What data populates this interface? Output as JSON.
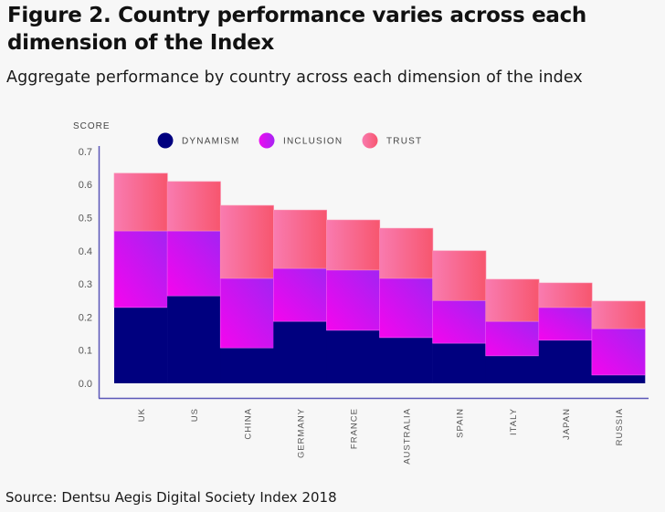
{
  "header": {
    "title": "Figure 2. Country performance varies across each dimension of the Index",
    "subtitle": "Aggregate performance by country across each dimension of the index"
  },
  "footer": {
    "source": "Source: Dentsu Aegis Digital Society Index 2018"
  },
  "chart_data": {
    "type": "bar",
    "stacked": true,
    "title": "Figure 2. Country performance varies across each dimension of the Index",
    "subtitle": "Aggregate performance by country across each dimension of the index",
    "xlabel": "",
    "ylabel": "SCORE",
    "ylim": [
      0,
      0.7
    ],
    "yticks": [
      "0.0",
      "0.1",
      "0.2",
      "0.3",
      "0.4",
      "0.5",
      "0.6",
      "0.7"
    ],
    "grid": false,
    "legend_position": "top",
    "categories": [
      "UK",
      "US",
      "CHINA",
      "GERMANY",
      "FRANCE",
      "AUSTRALIA",
      "SPAIN",
      "ITALY",
      "JAPAN",
      "RUSSIA"
    ],
    "series": [
      {
        "name": "DYNAMISM",
        "color": "#00007f",
        "values": [
          0.229,
          0.264,
          0.107,
          0.187,
          0.16,
          0.138,
          0.121,
          0.083,
          0.13,
          0.025
        ]
      },
      {
        "name": "INCLUSION",
        "color": "#e30bf0",
        "color_end": "#a51ff2",
        "values": [
          0.231,
          0.196,
          0.21,
          0.16,
          0.182,
          0.179,
          0.129,
          0.104,
          0.099,
          0.14
        ]
      },
      {
        "name": "TRUST",
        "color": "#f775a8",
        "color_end": "#f75470",
        "values": [
          0.174,
          0.149,
          0.22,
          0.176,
          0.151,
          0.151,
          0.15,
          0.127,
          0.074,
          0.083
        ]
      }
    ]
  }
}
